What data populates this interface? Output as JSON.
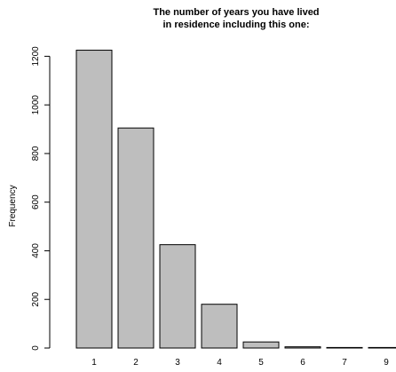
{
  "chart_data": {
    "type": "bar",
    "title_line1": "The number of years you have lived",
    "title_line2": "in residence including this one:",
    "xlabel": "",
    "ylabel": "Frequency",
    "categories": [
      "1",
      "2",
      "3",
      "4",
      "5",
      "6",
      "7",
      "9"
    ],
    "values": [
      1225,
      905,
      425,
      180,
      25,
      5,
      2,
      2
    ],
    "yticks": [
      0,
      200,
      400,
      600,
      800,
      1000,
      1200
    ],
    "ylim": [
      0,
      1300
    ],
    "grid": false,
    "legend": "none",
    "colors": {
      "bar_fill": "#bebebe",
      "bar_stroke": "#000000",
      "axis": "#000000",
      "text": "#000000"
    }
  }
}
